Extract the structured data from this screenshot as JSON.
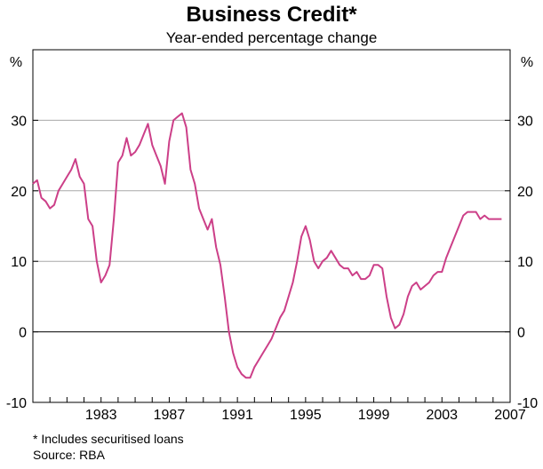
{
  "chart_data": {
    "type": "line",
    "title": "Business Credit*",
    "subtitle": "Year-ended percentage change",
    "y_unit_left": "%",
    "y_unit_right": "%",
    "ylim": [
      -10,
      40
    ],
    "yticks": [
      -10,
      0,
      10,
      20,
      30
    ],
    "xlim": [
      1979.0,
      2007.0
    ],
    "xticks": [
      1983,
      1987,
      1991,
      1995,
      1999,
      2003,
      2007
    ],
    "grid": true,
    "line_color": "#cc3f88",
    "series": [
      {
        "x": [
          1979.0,
          1979.25,
          1979.5,
          1979.75,
          1980.0,
          1980.25,
          1980.5,
          1980.75,
          1981.0,
          1981.25,
          1981.5,
          1981.75,
          1982.0,
          1982.25,
          1982.5,
          1982.75,
          1983.0,
          1983.25,
          1983.5,
          1983.75,
          1984.0,
          1984.25,
          1984.5,
          1984.75,
          1985.0,
          1985.25,
          1985.5,
          1985.75,
          1986.0,
          1986.25,
          1986.5,
          1986.75,
          1987.0,
          1987.25,
          1987.5,
          1987.75,
          1988.0,
          1988.25,
          1988.5,
          1988.75,
          1989.0,
          1989.25,
          1989.5,
          1989.75,
          1990.0,
          1990.25,
          1990.5,
          1990.75,
          1991.0,
          1991.25,
          1991.5,
          1991.75,
          1992.0,
          1992.25,
          1992.5,
          1992.75,
          1993.0,
          1993.25,
          1993.5,
          1993.75,
          1994.0,
          1994.25,
          1994.5,
          1994.75,
          1995.0,
          1995.25,
          1995.5,
          1995.75,
          1996.0,
          1996.25,
          1996.5,
          1996.75,
          1997.0,
          1997.25,
          1997.5,
          1997.75,
          1998.0,
          1998.25,
          1998.5,
          1998.75,
          1999.0,
          1999.25,
          1999.5,
          1999.75,
          2000.0,
          2000.25,
          2000.5,
          2000.75,
          2001.0,
          2001.25,
          2001.5,
          2001.75,
          2002.0,
          2002.25,
          2002.5,
          2002.75,
          2003.0,
          2003.25,
          2003.5,
          2003.75,
          2004.0,
          2004.25,
          2004.5,
          2004.75,
          2005.0,
          2005.25,
          2005.5,
          2005.75,
          2006.0,
          2006.25,
          2006.5
        ],
        "values": [
          21.0,
          21.5,
          19.0,
          18.5,
          17.5,
          18.0,
          20.0,
          21.0,
          22.0,
          23.0,
          24.5,
          22.0,
          21.0,
          16.0,
          15.0,
          10.0,
          7.0,
          8.0,
          9.5,
          16.0,
          24.0,
          25.0,
          27.5,
          25.0,
          25.5,
          26.5,
          28.0,
          29.5,
          26.5,
          25.0,
          23.5,
          21.0,
          27.0,
          30.0,
          30.5,
          31.0,
          29.0,
          23.0,
          21.0,
          17.5,
          16.0,
          14.5,
          16.0,
          12.0,
          9.5,
          5.0,
          0.0,
          -3.0,
          -5.0,
          -6.0,
          -6.5,
          -6.5,
          -5.0,
          -4.0,
          -3.0,
          -2.0,
          -1.0,
          0.5,
          2.0,
          3.0,
          5.0,
          7.0,
          10.0,
          13.5,
          15.0,
          13.0,
          10.0,
          9.0,
          10.0,
          10.5,
          11.5,
          10.5,
          9.5,
          9.0,
          9.0,
          8.0,
          8.5,
          7.5,
          7.5,
          8.0,
          9.5,
          9.5,
          9.0,
          5.0,
          2.0,
          0.5,
          1.0,
          2.5,
          5.0,
          6.5,
          7.0,
          6.0,
          6.5,
          7.0,
          8.0,
          8.5,
          8.5,
          10.5,
          12.0,
          13.5,
          15.0,
          16.5,
          17.0,
          17.0,
          17.0,
          16.0,
          16.5,
          16.0,
          16.0,
          16.0,
          16.0
        ]
      }
    ]
  },
  "footnote": "*   Includes securitised loans",
  "source": "Source: RBA"
}
